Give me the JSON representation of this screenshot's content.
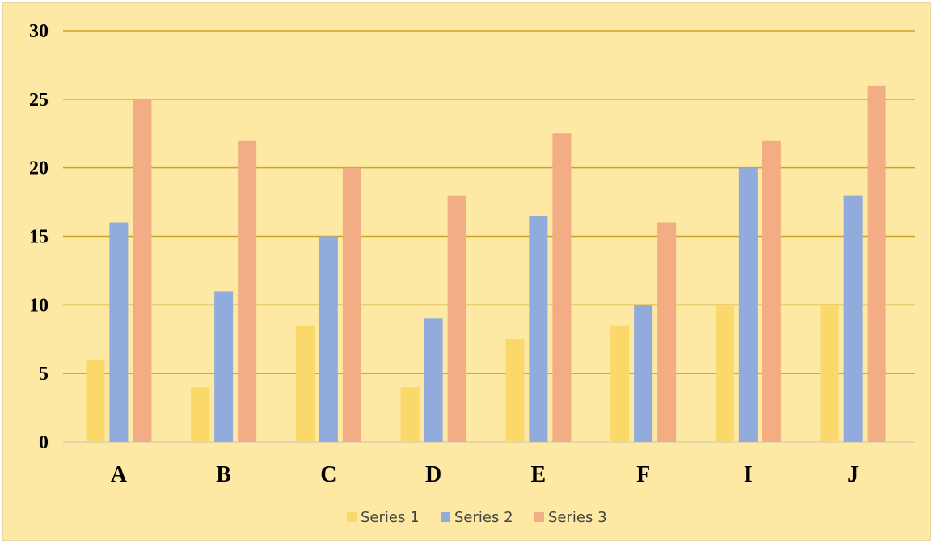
{
  "chart_data": {
    "type": "bar",
    "title": "",
    "xlabel": "",
    "ylabel": "",
    "categories": [
      "A",
      "B",
      "C",
      "D",
      "E",
      "F",
      "I",
      "J"
    ],
    "series": [
      {
        "name": "Series 1",
        "color": "#fad86a",
        "values": [
          6,
          4,
          8.5,
          4,
          7.5,
          8.5,
          10,
          10
        ]
      },
      {
        "name": "Series 2",
        "color": "#91acdc",
        "values": [
          16,
          11,
          15,
          9,
          16.5,
          10,
          20,
          18
        ]
      },
      {
        "name": "Series 3",
        "color": "#f2ad84",
        "values": [
          25,
          22,
          20,
          18,
          22.5,
          16,
          22,
          26
        ]
      }
    ],
    "ylim": [
      0,
      30
    ],
    "yticks": [
      0,
      5,
      10,
      15,
      20,
      25,
      30
    ],
    "grid": true,
    "grid_color": "#c9a227",
    "background_color": "#fde9a3",
    "legend_position": "bottom"
  }
}
